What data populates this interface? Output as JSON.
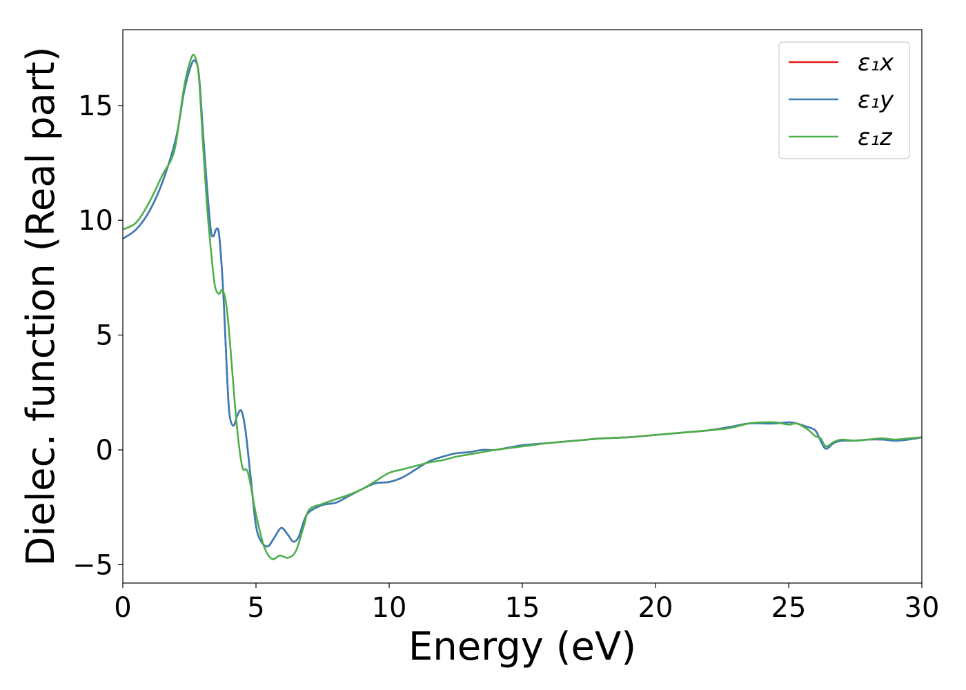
{
  "chart_data": {
    "type": "line",
    "xlabel": "Energy (eV)",
    "ylabel": "Dielec. function (Real part)",
    "xlim": [
      0,
      30
    ],
    "ylim": [
      -5.8,
      18.3
    ],
    "xticks": [
      0,
      5,
      10,
      15,
      20,
      25,
      30
    ],
    "xtick_labels": [
      "0",
      "5",
      "10",
      "15",
      "20",
      "25",
      "30"
    ],
    "yticks": [
      -5,
      0,
      5,
      10,
      15
    ],
    "ytick_labels": [
      "−5",
      "0",
      "5",
      "10",
      "15"
    ],
    "grid": false,
    "legend_position": "top-right",
    "series": [
      {
        "name": "ε₁x",
        "color": "#e41a1c",
        "x": [
          0,
          0.5,
          1.0,
          1.5,
          2.0,
          2.3,
          2.55,
          2.7,
          2.85,
          3.0,
          3.15,
          3.3,
          3.4,
          3.5,
          3.6,
          3.7,
          3.8,
          3.9,
          4.0,
          4.15,
          4.3,
          4.45,
          4.6,
          4.8,
          5.0,
          5.2,
          5.45,
          5.7,
          5.95,
          6.2,
          6.4,
          6.6,
          6.8,
          7.0,
          7.5,
          8.0,
          8.5,
          9.0,
          9.5,
          10.0,
          10.5,
          11.0,
          11.5,
          12.0,
          12.5,
          13.0,
          13.5,
          14.0,
          15.0,
          16.0,
          17.0,
          18.0,
          19.0,
          20.0,
          21.0,
          22.0,
          22.8,
          23.5,
          24.0,
          24.5,
          25.0,
          25.3,
          25.7,
          26.0,
          26.2,
          26.4,
          26.7,
          27.0,
          27.5,
          28.0,
          28.5,
          29.0,
          29.5,
          30.0
        ],
        "y": [
          9.2,
          9.6,
          10.4,
          11.7,
          13.6,
          15.6,
          16.7,
          16.95,
          16.4,
          14.0,
          11.6,
          9.6,
          9.3,
          9.6,
          9.5,
          8.2,
          6.2,
          3.6,
          1.6,
          1.05,
          1.5,
          1.7,
          0.9,
          -1.2,
          -3.3,
          -4.0,
          -4.2,
          -3.8,
          -3.4,
          -3.7,
          -4.0,
          -3.8,
          -3.1,
          -2.7,
          -2.4,
          -2.3,
          -2.0,
          -1.7,
          -1.45,
          -1.4,
          -1.2,
          -0.85,
          -0.5,
          -0.3,
          -0.15,
          -0.1,
          0.0,
          0.0,
          0.2,
          0.3,
          0.4,
          0.5,
          0.55,
          0.65,
          0.75,
          0.85,
          1.0,
          1.15,
          1.15,
          1.15,
          1.2,
          1.15,
          1.0,
          0.85,
          0.4,
          0.05,
          0.3,
          0.4,
          0.4,
          0.45,
          0.45,
          0.4,
          0.45,
          0.55
        ]
      },
      {
        "name": "ε₁y",
        "color": "#377eb8",
        "x": [
          0,
          0.5,
          1.0,
          1.5,
          2.0,
          2.3,
          2.55,
          2.7,
          2.85,
          3.0,
          3.15,
          3.3,
          3.4,
          3.5,
          3.6,
          3.7,
          3.8,
          3.9,
          4.0,
          4.15,
          4.3,
          4.45,
          4.6,
          4.8,
          5.0,
          5.2,
          5.45,
          5.7,
          5.95,
          6.2,
          6.4,
          6.6,
          6.8,
          7.0,
          7.5,
          8.0,
          8.5,
          9.0,
          9.5,
          10.0,
          10.5,
          11.0,
          11.5,
          12.0,
          12.5,
          13.0,
          13.5,
          14.0,
          15.0,
          16.0,
          17.0,
          18.0,
          19.0,
          20.0,
          21.0,
          22.0,
          22.8,
          23.5,
          24.0,
          24.5,
          25.0,
          25.3,
          25.7,
          26.0,
          26.2,
          26.4,
          26.7,
          27.0,
          27.5,
          28.0,
          28.5,
          29.0,
          29.5,
          30.0
        ],
        "y": [
          9.2,
          9.6,
          10.4,
          11.7,
          13.6,
          15.6,
          16.7,
          16.95,
          16.4,
          14.0,
          11.6,
          9.6,
          9.3,
          9.6,
          9.5,
          8.2,
          6.2,
          3.6,
          1.6,
          1.05,
          1.5,
          1.7,
          0.9,
          -1.2,
          -3.3,
          -4.0,
          -4.2,
          -3.8,
          -3.4,
          -3.7,
          -4.0,
          -3.8,
          -3.1,
          -2.7,
          -2.4,
          -2.3,
          -2.0,
          -1.7,
          -1.45,
          -1.4,
          -1.2,
          -0.85,
          -0.5,
          -0.3,
          -0.15,
          -0.1,
          0.0,
          0.0,
          0.2,
          0.3,
          0.4,
          0.5,
          0.55,
          0.65,
          0.75,
          0.85,
          1.0,
          1.15,
          1.15,
          1.15,
          1.2,
          1.15,
          1.0,
          0.85,
          0.4,
          0.05,
          0.3,
          0.4,
          0.4,
          0.45,
          0.45,
          0.4,
          0.45,
          0.55
        ]
      },
      {
        "name": "ε₁z",
        "color": "#4daf4a",
        "x": [
          0,
          0.5,
          1.0,
          1.5,
          1.8,
          2.0,
          2.3,
          2.55,
          2.7,
          2.85,
          3.0,
          3.15,
          3.3,
          3.45,
          3.6,
          3.75,
          3.9,
          4.05,
          4.2,
          4.35,
          4.5,
          4.7,
          5.0,
          5.3,
          5.6,
          5.9,
          6.2,
          6.5,
          6.8,
          7.0,
          7.5,
          8.0,
          8.5,
          9.0,
          9.5,
          10.0,
          10.5,
          11.0,
          11.5,
          12.0,
          12.5,
          13.0,
          14.0,
          15.0,
          16.0,
          17.0,
          18.0,
          19.0,
          20.0,
          21.0,
          22.0,
          22.8,
          23.5,
          24.0,
          24.5,
          25.0,
          25.3,
          25.7,
          26.0,
          26.2,
          26.4,
          26.7,
          27.0,
          27.5,
          28.0,
          28.5,
          29.0,
          29.5,
          30.0
        ],
        "y": [
          9.6,
          9.9,
          10.8,
          12.0,
          12.6,
          13.4,
          15.8,
          17.0,
          17.15,
          16.3,
          13.5,
          10.8,
          8.8,
          7.2,
          6.8,
          6.95,
          6.2,
          4.3,
          2.1,
          0.3,
          -0.8,
          -1.0,
          -2.8,
          -4.2,
          -4.75,
          -4.6,
          -4.7,
          -4.4,
          -3.3,
          -2.6,
          -2.35,
          -2.15,
          -1.95,
          -1.7,
          -1.35,
          -1.0,
          -0.85,
          -0.7,
          -0.55,
          -0.45,
          -0.3,
          -0.2,
          0.0,
          0.15,
          0.3,
          0.4,
          0.5,
          0.55,
          0.65,
          0.75,
          0.85,
          0.95,
          1.15,
          1.2,
          1.2,
          1.1,
          1.15,
          0.9,
          0.6,
          0.5,
          0.15,
          0.35,
          0.45,
          0.4,
          0.45,
          0.5,
          0.45,
          0.5,
          0.55
        ]
      }
    ]
  }
}
